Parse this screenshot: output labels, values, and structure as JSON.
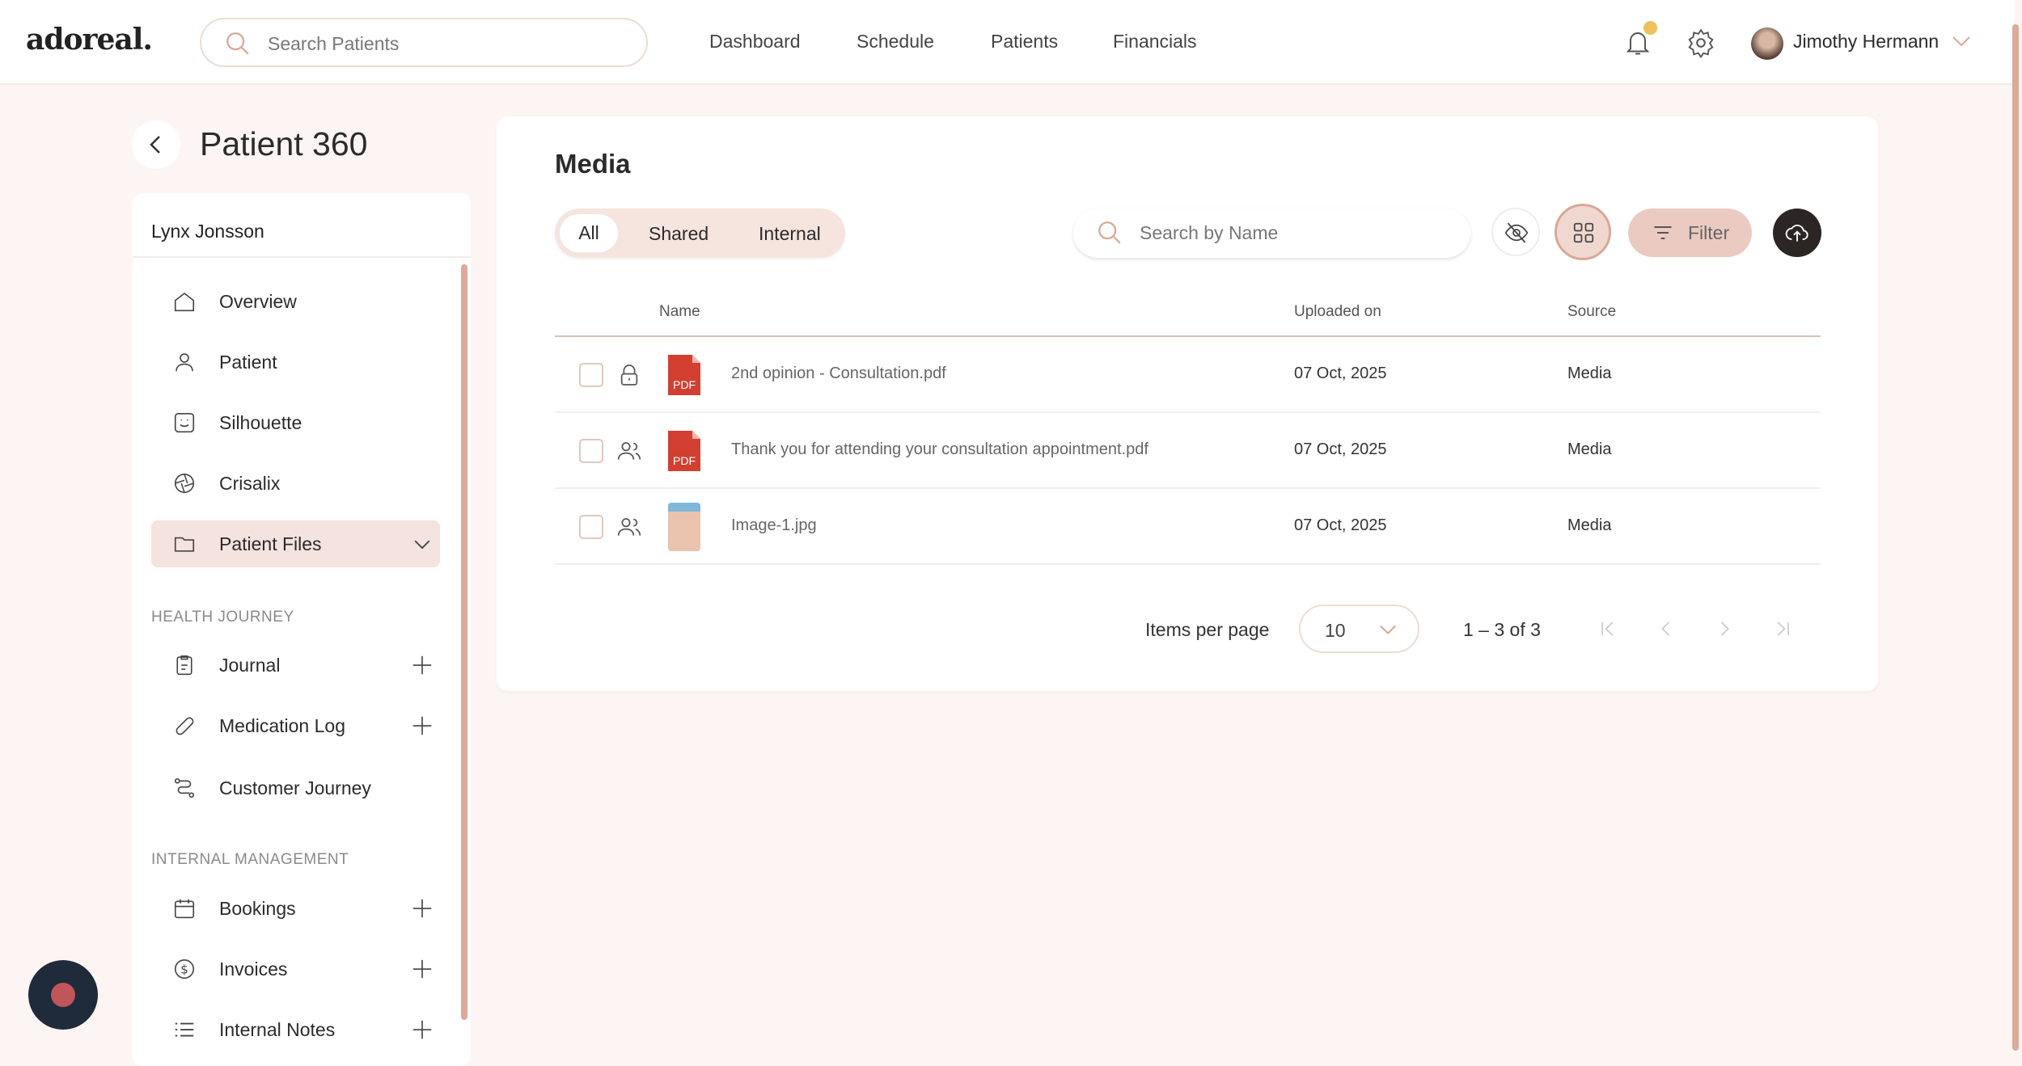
{
  "header": {
    "logo": "adoreal.",
    "search_placeholder": "Search Patients",
    "nav": [
      "Dashboard",
      "Schedule",
      "Patients",
      "Financials"
    ],
    "user_name": "Jimothy Hermann",
    "notification_color": "#f0c05a"
  },
  "page": {
    "title": "Patient 360"
  },
  "sidebar": {
    "patient_name": "Lynx Jonsson",
    "items": [
      {
        "label": "Overview",
        "icon": "home-icon"
      },
      {
        "label": "Patient",
        "icon": "user-icon"
      },
      {
        "label": "Silhouette",
        "icon": "face-icon"
      },
      {
        "label": "Crisalix",
        "icon": "aperture-icon"
      },
      {
        "label": "Patient Files",
        "icon": "folder-icon"
      }
    ],
    "health_journey_label": "HEALTH JOURNEY",
    "health_items": [
      {
        "label": "Journal"
      },
      {
        "label": "Medication Log"
      },
      {
        "label": "Customer Journey"
      }
    ],
    "internal_label": "INTERNAL MANAGEMENT",
    "internal_items": [
      {
        "label": "Bookings"
      },
      {
        "label": "Invoices"
      },
      {
        "label": "Internal Notes"
      }
    ]
  },
  "media": {
    "title": "Media",
    "tabs": [
      "All",
      "Shared",
      "Internal"
    ],
    "active_tab": "All",
    "search_placeholder": "Search by Name",
    "filter_label": "Filter",
    "columns": {
      "name": "Name",
      "uploaded": "Uploaded on",
      "source": "Source"
    },
    "rows": [
      {
        "name": "2nd opinion - Consultation.pdf",
        "uploaded": "07 Oct, 2025",
        "source": "Media",
        "visibility": "lock-icon",
        "type": "pdf"
      },
      {
        "name": "Thank you for attending your consultation appointment.pdf",
        "uploaded": "07 Oct, 2025",
        "source": "Media",
        "visibility": "users-icon",
        "type": "pdf"
      },
      {
        "name": "Image-1.jpg",
        "uploaded": "07 Oct, 2025",
        "source": "Media",
        "visibility": "users-icon",
        "type": "image"
      }
    ],
    "pagination": {
      "items_per_page_label": "Items per page",
      "items_per_page": "10",
      "range": "1 – 3 of 3"
    },
    "pdf_label": "PDF"
  }
}
